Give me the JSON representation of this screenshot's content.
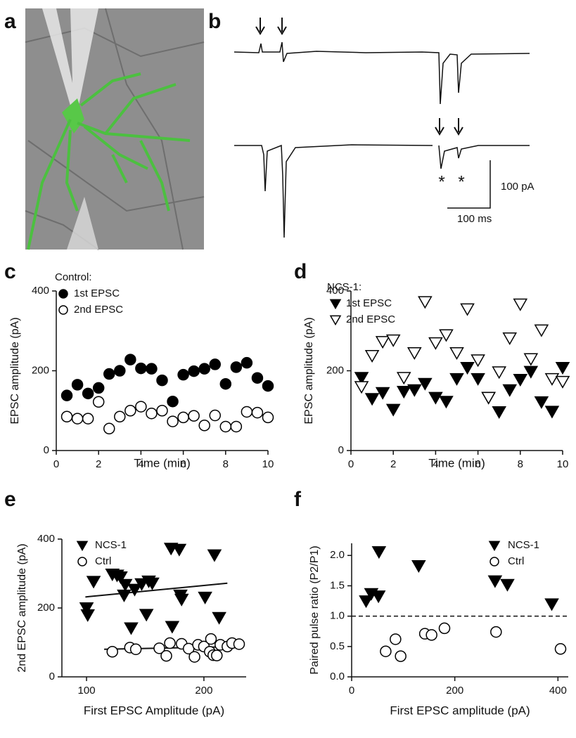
{
  "panel_a": {
    "label": "a"
  },
  "panel_b": {
    "label": "b",
    "scale_y_label": "100 pA",
    "scale_x_label": "100 ms",
    "stimulus_marks": [
      "*",
      "*"
    ]
  },
  "chart_data": [
    {
      "type": "scatter",
      "panel": "c",
      "xlabel": "Time (min)",
      "ylabel": "EPSC amplitude (pA)",
      "legend_title": "Control:",
      "legend": "upper left",
      "xlim": [
        0,
        10
      ],
      "xticks": [
        0,
        2,
        4,
        6,
        8,
        10
      ],
      "ylim": [
        0,
        400
      ],
      "yticks": [
        0,
        200,
        400
      ],
      "x": [
        0.5,
        1,
        1.5,
        2,
        2.5,
        3,
        3.5,
        4,
        4.5,
        5,
        5.5,
        6,
        6.5,
        7,
        7.5,
        8,
        8.5,
        9,
        9.5,
        10
      ],
      "series": [
        {
          "name": "1st EPSC",
          "color": "#000000",
          "marker": "circle",
          "filled": true,
          "values": [
            138,
            165,
            143,
            157,
            192,
            200,
            228,
            206,
            205,
            176,
            123,
            190,
            199,
            205,
            216,
            167,
            209,
            220,
            182,
            162
          ]
        },
        {
          "name": "2nd EPSC",
          "color": "#000000",
          "marker": "circle",
          "filled": false,
          "values": [
            85,
            80,
            80,
            122,
            55,
            85,
            100,
            110,
            93,
            100,
            73,
            83,
            87,
            63,
            88,
            60,
            60,
            97,
            95,
            83
          ]
        }
      ]
    },
    {
      "type": "scatter",
      "panel": "d",
      "xlabel": "Time (min)",
      "ylabel": "EPSC amplitude (pA)",
      "legend_title": "NCS-1:",
      "legend": "upper left",
      "xlim": [
        0,
        10
      ],
      "xticks": [
        0,
        2,
        4,
        6,
        8,
        10
      ],
      "ylim": [
        0,
        400
      ],
      "yticks": [
        0,
        200,
        400
      ],
      "x": [
        0.5,
        1,
        1.5,
        2,
        2.5,
        3,
        3.5,
        4,
        4.5,
        5,
        5.5,
        6,
        6.5,
        7,
        7.5,
        8,
        8.5,
        9,
        9.5,
        10
      ],
      "series": [
        {
          "name": "1st EPSC",
          "color": "#000000",
          "marker": "triangle-down",
          "filled": true,
          "values": [
            183,
            130,
            145,
            103,
            148,
            152,
            168,
            133,
            123,
            180,
            208,
            180,
            133,
            97,
            152,
            178,
            198,
            122,
            98,
            208
          ]
        },
        {
          "name": "2nd EPSC",
          "color": "#000000",
          "marker": "triangle-down",
          "filled": false,
          "values": [
            160,
            238,
            273,
            277,
            183,
            245,
            373,
            270,
            290,
            245,
            355,
            227,
            133,
            197,
            282,
            367,
            230,
            302,
            180,
            173
          ]
        }
      ]
    },
    {
      "type": "scatter",
      "panel": "e",
      "xlabel": "First EPSC Amplitude (pA)",
      "ylabel": "2nd EPSC amplitude (pA)",
      "legend": "upper left",
      "xlim": [
        79,
        236
      ],
      "xticks": [
        100,
        200
      ],
      "ylim": [
        0,
        400
      ],
      "yticks": [
        0,
        200,
        400
      ],
      "series": [
        {
          "name": "NCS-1",
          "color": "#000000",
          "marker": "triangle-down",
          "filled": true,
          "x": [
            100,
            101,
            106,
            122,
            126,
            129,
            133,
            132,
            141,
            147,
            153,
            151,
            156,
            138,
            172,
            179,
            180,
            181,
            173,
            201,
            209,
            213
          ],
          "values": [
            200,
            180,
            277,
            298,
            295,
            290,
            268,
            237,
            254,
            270,
            278,
            181,
            272,
            142,
            373,
            370,
            237,
            225,
            146,
            231,
            354,
            172
          ]
        },
        {
          "name": "Ctrl",
          "color": "#000000",
          "marker": "circle",
          "filled": false,
          "x": [
            122,
            137,
            142,
            162,
            168,
            171,
            181,
            187,
            192,
            195,
            200,
            205,
            206,
            208,
            211,
            214,
            220,
            224,
            230
          ],
          "values": [
            73,
            85,
            80,
            83,
            61,
            98,
            96,
            82,
            58,
            93,
            88,
            73,
            110,
            63,
            62,
            93,
            88,
            98,
            95
          ]
        }
      ],
      "fit_lines": [
        {
          "x": [
            99,
            220
          ],
          "values": [
            232,
            272
          ]
        },
        {
          "x": [
            115,
            232
          ],
          "values": [
            80,
            88
          ]
        }
      ]
    },
    {
      "type": "scatter",
      "panel": "f",
      "xlabel": "First EPSC amplitude (pA)",
      "ylabel": "Paired pulse ratio (P2/P1)",
      "legend": "upper right",
      "xlim": [
        0,
        420
      ],
      "xticks": [
        0,
        200,
        400
      ],
      "ylim": [
        0,
        2.2
      ],
      "yticks": [
        {
          "value": 0,
          "label": "0.0"
        },
        0.5,
        {
          "value": 1,
          "label": "1.0"
        },
        1.5,
        {
          "value": 2,
          "label": "2.0"
        }
      ],
      "hline": 1,
      "series": [
        {
          "name": "NCS-1",
          "color": "#000000",
          "marker": "triangle-down",
          "filled": true,
          "x": [
            28,
            38,
            52,
            53,
            130,
            278,
            302,
            388
          ],
          "values": [
            1.25,
            1.37,
            1.33,
            2.06,
            1.83,
            1.58,
            1.52,
            1.2
          ]
        },
        {
          "name": "Ctrl",
          "color": "#000000",
          "marker": "circle",
          "filled": false,
          "x": [
            66,
            85,
            95,
            142,
            155,
            180,
            280,
            405
          ],
          "values": [
            0.42,
            0.62,
            0.34,
            0.71,
            0.69,
            0.8,
            0.74,
            0.46
          ]
        }
      ]
    }
  ]
}
